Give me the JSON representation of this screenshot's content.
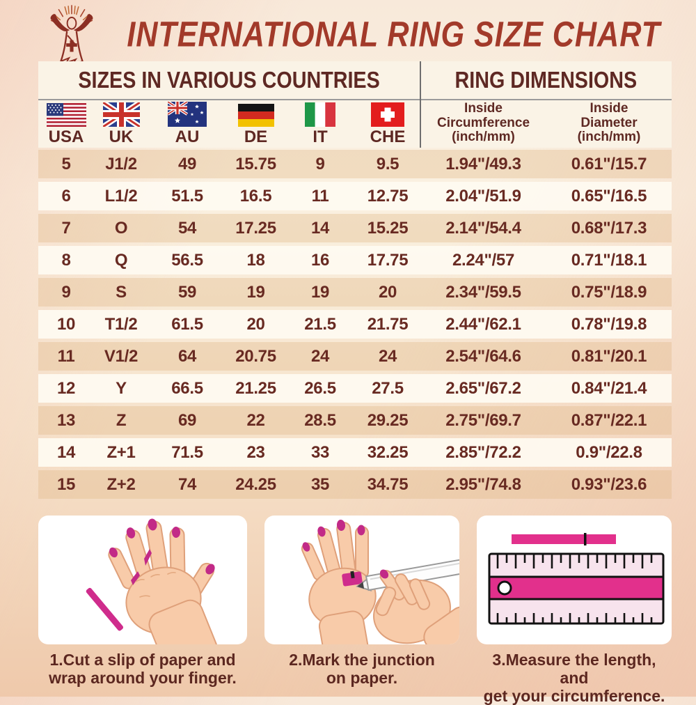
{
  "title": "INTERNATIONAL RING SIZE CHART",
  "header": {
    "logo_icon": "jesus-logo"
  },
  "table": {
    "section_headers": {
      "left": "SIZES IN VARIOUS COUNTRIES",
      "right": "RING DIMENSIONS"
    },
    "country_columns": [
      {
        "code": "USA",
        "flag": "usa-flag"
      },
      {
        "code": "UK",
        "flag": "uk-flag"
      },
      {
        "code": "AU",
        "flag": "au-flag"
      },
      {
        "code": "DE",
        "flag": "de-flag"
      },
      {
        "code": "IT",
        "flag": "it-flag"
      },
      {
        "code": "CHE",
        "flag": "che-flag"
      }
    ],
    "dimension_columns": [
      {
        "label_lines": [
          "Inside",
          "Circumference",
          "(inch/mm)"
        ]
      },
      {
        "label_lines": [
          "Inside",
          "Diameter",
          "(inch/mm)"
        ]
      }
    ],
    "rows": [
      [
        "5",
        "J1/2",
        "49",
        "15.75",
        "9",
        "9.5",
        "1.94\"/49.3",
        "0.61\"/15.7"
      ],
      [
        "6",
        "L1/2",
        "51.5",
        "16.5",
        "11",
        "12.75",
        "2.04\"/51.9",
        "0.65\"/16.5"
      ],
      [
        "7",
        "O",
        "54",
        "17.25",
        "14",
        "15.25",
        "2.14\"/54.4",
        "0.68\"/17.3"
      ],
      [
        "8",
        "Q",
        "56.5",
        "18",
        "16",
        "17.75",
        "2.24\"/57",
        "0.71\"/18.1"
      ],
      [
        "9",
        "S",
        "59",
        "19",
        "19",
        "20",
        "2.34\"/59.5",
        "0.75\"/18.9"
      ],
      [
        "10",
        "T1/2",
        "61.5",
        "20",
        "21.5",
        "21.75",
        "2.44\"/62.1",
        "0.78\"/19.8"
      ],
      [
        "11",
        "V1/2",
        "64",
        "20.75",
        "24",
        "24",
        "2.54\"/64.6",
        "0.81\"/20.1"
      ],
      [
        "12",
        "Y",
        "66.5",
        "21.25",
        "26.5",
        "27.5",
        "2.65\"/67.2",
        "0.84\"/21.4"
      ],
      [
        "13",
        "Z",
        "69",
        "22",
        "28.5",
        "29.25",
        "2.75\"/69.7",
        "0.87\"/22.1"
      ],
      [
        "14",
        "Z+1",
        "71.5",
        "23",
        "33",
        "32.25",
        "2.85\"/72.2",
        "0.9\"/22.8"
      ],
      [
        "15",
        "Z+2",
        "74",
        "24.25",
        "35",
        "34.75",
        "2.95\"/74.8",
        "0.93\"/23.6"
      ]
    ]
  },
  "instructions": [
    {
      "illustration": "hand-with-paper-slip",
      "caption_lines": [
        "1.Cut a slip of paper and",
        "wrap around your finger."
      ]
    },
    {
      "illustration": "mark-junction-with-pen",
      "caption_lines": [
        "2.Mark the junction",
        "on paper."
      ]
    },
    {
      "illustration": "ruler-measure-strip",
      "caption_lines": [
        "3.Measure the length, and",
        "get your circumference."
      ]
    }
  ],
  "colors": {
    "title": "#a23a2a",
    "table_text": "#682a22",
    "header_text": "#5e2823",
    "header_bg": "#faf3e6",
    "accent_pink": "#cf2c8c",
    "panel_bg": "#ffffff"
  }
}
